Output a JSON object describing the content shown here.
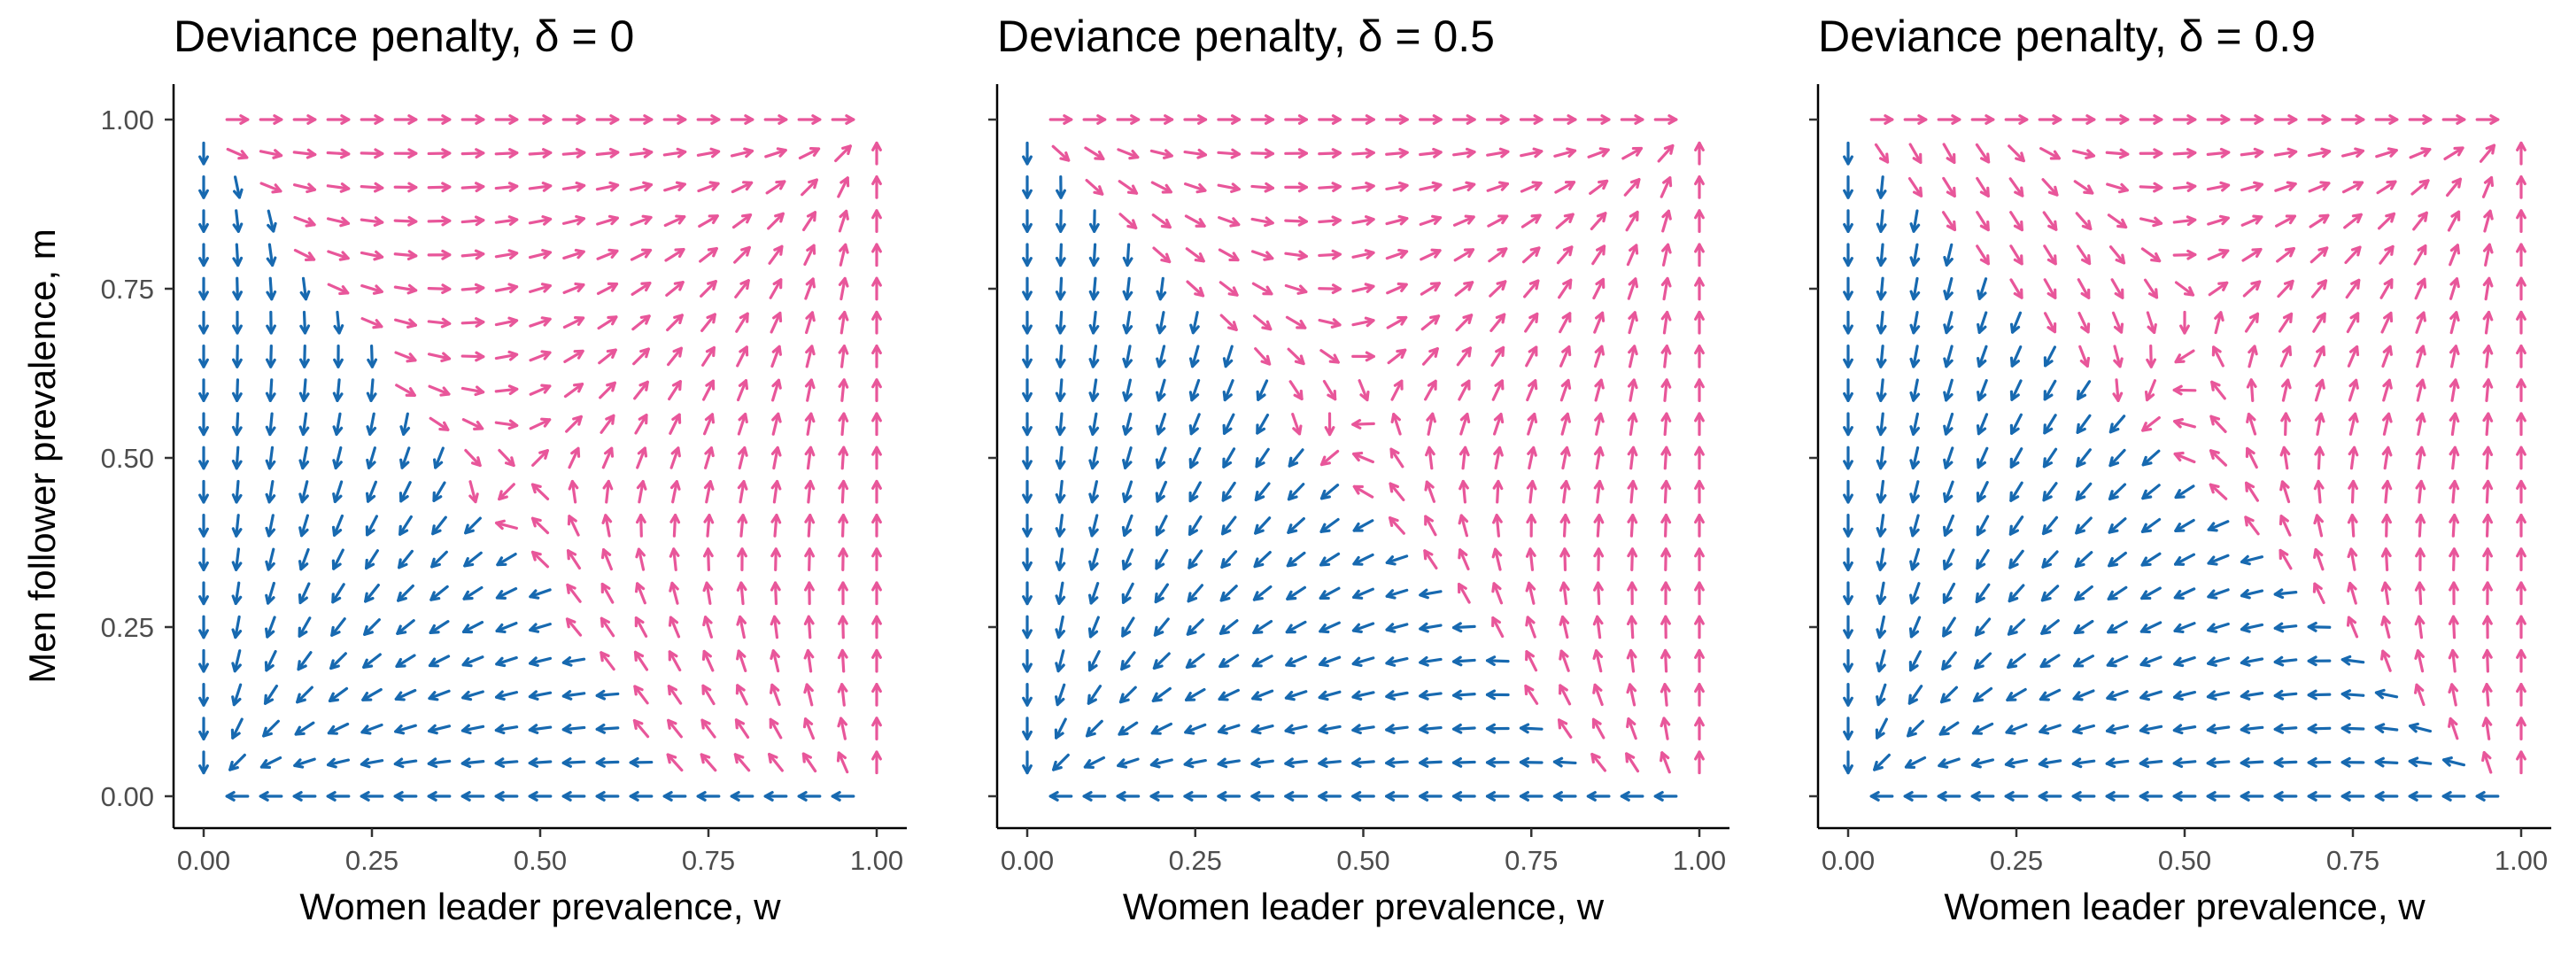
{
  "chart_data": {
    "type": "vector-field",
    "shared_axes": {
      "xlabel": "Women leader prevalence, w",
      "ylabel": "Men follower prevalence, m",
      "xlim": [
        0,
        1
      ],
      "ylim": [
        0,
        1
      ],
      "xticks": [
        "0.00",
        "0.25",
        "0.50",
        "0.75",
        "1.00"
      ],
      "yticks": [
        "0.00",
        "0.25",
        "0.50",
        "0.75",
        "1.00"
      ]
    },
    "grid": "off",
    "legend": "none",
    "colors": {
      "pink": "#e8569a",
      "blue": "#1769b0"
    },
    "field_definition": {
      "grid_x_min": 0,
      "grid_x_max": 1,
      "grid_x_steps": 20,
      "grid_y_min": 0,
      "grid_y_max": 1,
      "grid_y_steps": 20,
      "dw": "w*(1-w)*(m - 0.5 - delta*0.3*(m - 0.5) - delta*0.4*(1-w))",
      "dm": "m*(1-m)*(w - 0.5 - 0.25*delta*(1-w) + 0.05*delta*m)",
      "color_rule": "pink when trajectory flows toward (1,1), blue when toward (0,0)"
    },
    "panels": [
      {
        "title": "Deviance penalty, δ =  0",
        "delta": 0,
        "separatrix_w_at_m0": 0.72,
        "separatrix_w_at_m1": 0.0
      },
      {
        "title": "Deviance penalty, δ =  0.5",
        "delta": 0.5,
        "separatrix_w_at_m0": 0.88,
        "separatrix_w_at_m1": 0.0
      },
      {
        "title": "Deviance penalty, δ =  0.9",
        "delta": 0.9,
        "separatrix_w_at_m0": 0.97,
        "separatrix_w_at_m1": 0.0
      }
    ]
  }
}
